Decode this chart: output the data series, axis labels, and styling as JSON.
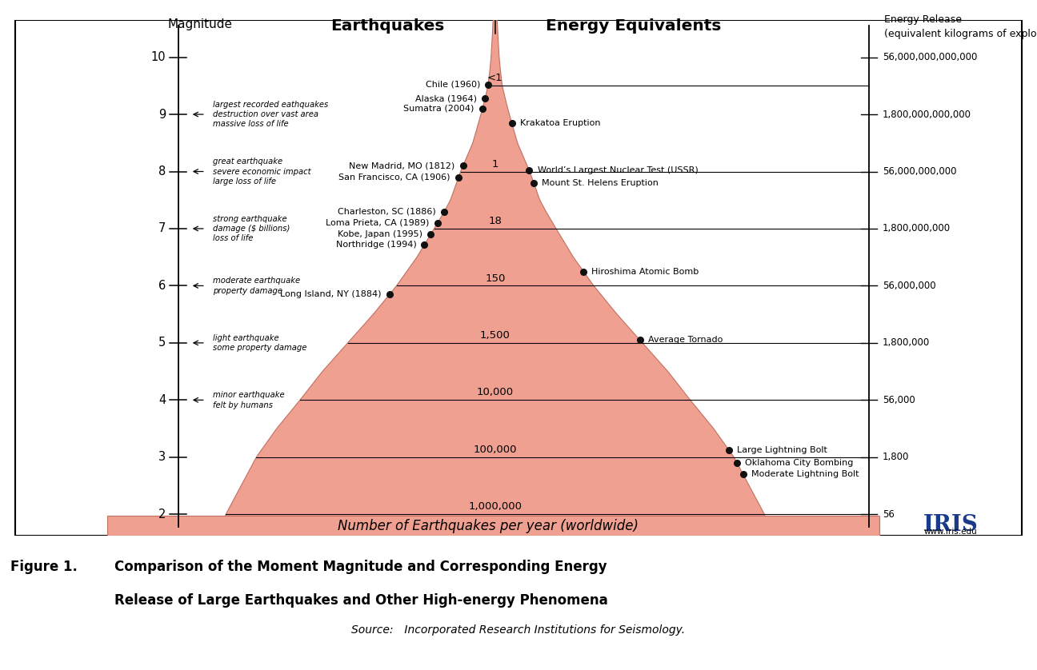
{
  "magnitude_ticks": [
    2,
    3,
    4,
    5,
    6,
    7,
    8,
    9,
    10
  ],
  "magnitude_descriptions": {
    "9": [
      "largest recorded eathquakes",
      "destruction over vast area",
      "massive loss of life"
    ],
    "8": [
      "great earthquake",
      "severe economic impact",
      "large loss of life"
    ],
    "7": [
      "strong earthquake",
      "damage ($ billions)",
      "loss of life"
    ],
    "6": [
      "moderate earthquake",
      "property damage"
    ],
    "5": [
      "light earthquake",
      "some property damage"
    ],
    "4": [
      "minor earthquake",
      "felt by humans"
    ]
  },
  "energy_data": [
    [
      10.0,
      "56,000,000,000,000"
    ],
    [
      9.0,
      "1,800,000,000,000"
    ],
    [
      8.0,
      "56,000,000,000"
    ],
    [
      7.0,
      "1,800,000,000"
    ],
    [
      6.0,
      "56,000,000"
    ],
    [
      5.0,
      "1,800,000"
    ],
    [
      4.0,
      "56,000"
    ],
    [
      3.0,
      "1,800"
    ],
    [
      2.0,
      "56"
    ]
  ],
  "center_lines": [
    [
      9.5,
      "<1"
    ],
    [
      8.0,
      "1"
    ],
    [
      7.0,
      "18"
    ],
    [
      6.0,
      "150"
    ],
    [
      5.0,
      "1,500"
    ],
    [
      4.0,
      "10,000"
    ],
    [
      3.0,
      "100,000"
    ],
    [
      2.0,
      "1,000,000"
    ]
  ],
  "left_earthquakes": [
    {
      "name": "Chile (1960)",
      "mag": 9.52
    },
    {
      "name": "Alaska (1964)",
      "mag": 9.28
    },
    {
      "name": "Sumatra (2004)",
      "mag": 9.1
    },
    {
      "name": "New Madrid, MO (1812)",
      "mag": 8.1
    },
    {
      "name": "San Francisco, CA (1906)",
      "mag": 7.9
    },
    {
      "name": "Charleston, SC (1886)",
      "mag": 7.3
    },
    {
      "name": "Loma Prieta, CA (1989)",
      "mag": 7.1
    },
    {
      "name": "Kobe, Japan (1995)",
      "mag": 6.9
    },
    {
      "name": "Northridge (1994)",
      "mag": 6.72
    },
    {
      "name": "Long Island, NY (1884)",
      "mag": 5.85
    }
  ],
  "right_events": [
    {
      "name": "Krakatoa Eruption",
      "mag": 8.85
    },
    {
      "name": "World’s Largest Nuclear Test (USSR)",
      "mag": 8.02
    },
    {
      "name": "Mount St. Helens Eruption",
      "mag": 7.8
    },
    {
      "name": "Hiroshima Atomic Bomb",
      "mag": 6.25
    },
    {
      "name": "Average Tornado",
      "mag": 5.05
    },
    {
      "name": "Large Lightning Bolt",
      "mag": 3.12
    },
    {
      "name": "Oklahoma City Bombing",
      "mag": 2.9
    },
    {
      "name": "Moderate Lightning Bolt",
      "mag": 2.7
    }
  ],
  "bottom_label": "Number of Earthquakes per year (worldwide)",
  "header_left": "Earthquakes",
  "header_right": "Energy Equivalents",
  "header_mag": "Magnitude",
  "header_energy_line1": "Energy Release",
  "header_energy_line2": "(equivalent kilograms of explosive)",
  "caption_bold": "Figure 1.  Comparison of the Moment Magnitude and Corresponding Energy\n        Release of Large Earthquakes and Other High-energy Phenomena",
  "caption_italic": "Source: Incorporated Research Institutions for Seismology.",
  "cone_fill": "#f0a090",
  "cone_edge": "#c07060",
  "bg_color": "#ffffff",
  "dot_color": "#111111",
  "iris_color": "#1a3a8a"
}
